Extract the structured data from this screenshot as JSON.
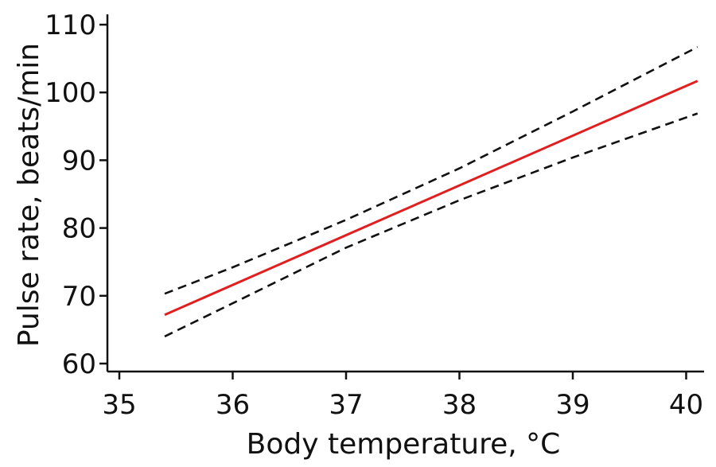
{
  "chart_data": {
    "type": "line",
    "title": "",
    "xlabel": "Body temperature, °C",
    "ylabel": "Pulse rate, beats/min",
    "xlim": [
      34.9,
      40.2
    ],
    "ylim": [
      59,
      110
    ],
    "xticks": [
      35,
      36,
      37,
      38,
      39,
      40
    ],
    "yticks": [
      60,
      70,
      80,
      90,
      100,
      110
    ],
    "grid": false,
    "legend": "none",
    "series": [
      {
        "color": "#e02020",
        "dash": "solid",
        "points": [
          [
            35.4,
            67.2
          ],
          [
            40.1,
            101.7
          ]
        ]
      },
      {
        "color": "#111111",
        "dash": "dashed",
        "points": [
          [
            35.4,
            70.3
          ],
          [
            36.0,
            74.2
          ],
          [
            37.0,
            81.2
          ],
          [
            38.0,
            88.8
          ],
          [
            39.0,
            97.2
          ],
          [
            40.1,
            106.7
          ]
        ]
      },
      {
        "color": "#111111",
        "dash": "dashed",
        "points": [
          [
            35.4,
            64.0
          ],
          [
            36.0,
            68.9
          ],
          [
            37.0,
            77.1
          ],
          [
            38.0,
            84.1
          ],
          [
            39.0,
            90.4
          ],
          [
            40.1,
            96.9
          ]
        ]
      }
    ]
  }
}
